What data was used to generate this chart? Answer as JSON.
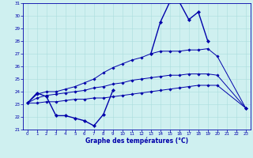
{
  "xlabel": "Graphe des températures (°C)",
  "bg_color": "#cff0f0",
  "grid_color": "#aadddd",
  "line_color": "#0000aa",
  "hours": [
    0,
    1,
    2,
    3,
    4,
    5,
    6,
    7,
    8,
    9,
    10,
    11,
    12,
    13,
    14,
    15,
    16,
    17,
    18,
    19,
    20,
    21,
    22,
    23
  ],
  "temp_actual": [
    23.1,
    23.9,
    23.6,
    22.1,
    22.1,
    21.9,
    21.7,
    21.3,
    22.2,
    24.1,
    null,
    null,
    null,
    27.0,
    29.5,
    31.1,
    31.1,
    29.7,
    30.3,
    28.0,
    null,
    null,
    null,
    22.7
  ],
  "temp_avg_max": [
    23.1,
    null,
    null,
    null,
    null,
    null,
    null,
    null,
    null,
    null,
    null,
    null,
    null,
    null,
    null,
    null,
    null,
    null,
    null,
    27.4,
    26.8,
    null,
    null,
    22.7
  ],
  "temp_hi": [
    null,
    null,
    null,
    null,
    null,
    null,
    null,
    null,
    null,
    null,
    null,
    null,
    null,
    null,
    null,
    null,
    null,
    null,
    null,
    null,
    null,
    null,
    null,
    null
  ],
  "temp_lo": [
    23.1,
    null,
    null,
    null,
    null,
    null,
    null,
    null,
    null,
    null,
    null,
    null,
    null,
    null,
    null,
    null,
    null,
    null,
    null,
    null,
    null,
    null,
    null,
    22.7
  ],
  "curve1_x": [
    0,
    1,
    2,
    3,
    4,
    5,
    6,
    7,
    8,
    9,
    10,
    11,
    12,
    13,
    14,
    15,
    16,
    17,
    18,
    19,
    20,
    23
  ],
  "curve1_y": [
    23.1,
    23.9,
    23.6,
    22.1,
    22.1,
    21.9,
    21.7,
    21.3,
    22.2,
    24.1,
    null,
    null,
    null,
    27.0,
    29.5,
    31.1,
    31.1,
    29.7,
    30.3,
    28.0,
    null,
    22.7
  ],
  "curve2_x": [
    0,
    1,
    2,
    3,
    4,
    5,
    6,
    7,
    8,
    9,
    10,
    11,
    12,
    13,
    14,
    15,
    16,
    17,
    18,
    19,
    20,
    23
  ],
  "curve2_y": [
    23.1,
    23.8,
    24.0,
    24.0,
    24.2,
    24.4,
    24.7,
    25.0,
    25.5,
    25.9,
    26.2,
    26.5,
    26.7,
    27.0,
    27.2,
    27.2,
    27.2,
    27.3,
    27.3,
    27.4,
    26.8,
    22.7
  ],
  "curve3_x": [
    0,
    1,
    2,
    3,
    4,
    5,
    6,
    7,
    8,
    9,
    10,
    11,
    12,
    13,
    14,
    15,
    16,
    17,
    18,
    19,
    20,
    23
  ],
  "curve3_y": [
    23.1,
    23.5,
    23.7,
    23.8,
    23.9,
    24.0,
    24.1,
    24.3,
    24.4,
    24.6,
    24.7,
    24.9,
    25.0,
    25.1,
    25.2,
    25.3,
    25.3,
    25.4,
    25.4,
    25.4,
    25.3,
    22.7
  ],
  "curve4_x": [
    0,
    1,
    2,
    3,
    4,
    5,
    6,
    7,
    8,
    9,
    10,
    11,
    12,
    13,
    14,
    15,
    16,
    17,
    18,
    19,
    20,
    23
  ],
  "curve4_y": [
    23.1,
    23.1,
    23.2,
    23.2,
    23.3,
    23.4,
    23.4,
    23.5,
    23.5,
    23.6,
    23.7,
    23.8,
    23.9,
    24.0,
    24.1,
    24.2,
    24.3,
    24.4,
    24.5,
    24.5,
    24.5,
    22.7
  ],
  "ylim": [
    21,
    31
  ],
  "yticks": [
    21,
    22,
    23,
    24,
    25,
    26,
    27,
    28,
    29,
    30,
    31
  ],
  "xticks": [
    0,
    1,
    2,
    3,
    4,
    5,
    6,
    7,
    8,
    9,
    10,
    11,
    12,
    13,
    14,
    15,
    16,
    17,
    18,
    19,
    20,
    21,
    22,
    23
  ]
}
